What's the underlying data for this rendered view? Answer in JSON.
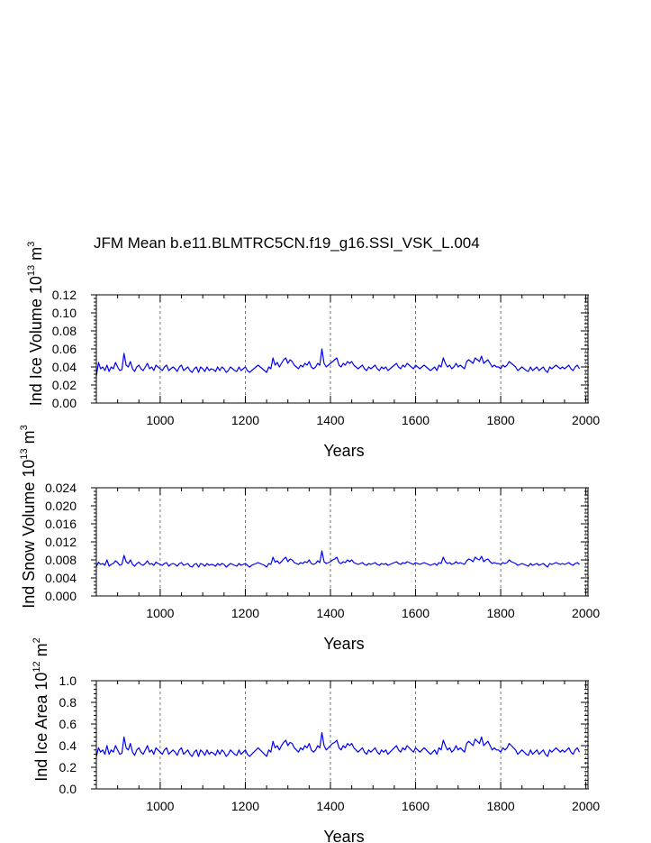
{
  "title": "JFM Mean b.e11.BLMTRC5CN.f19_g16.SSI_VSK_L.004",
  "colors": {
    "line": "#0000ff",
    "axis": "#000000",
    "grid": "#555555"
  },
  "chart_data": [
    {
      "type": "line",
      "xlabel": "Years",
      "ylabel_main": "Ind Ice Volume 10",
      "ylabel_exp": "13",
      "ylabel_unit": "m",
      "ylabel_unit_exp": "3",
      "xlim": [
        850,
        2005
      ],
      "ylim": [
        0,
        0.12
      ],
      "xticks": [
        "1000",
        "1200",
        "1400",
        "1600",
        "1800",
        "2000"
      ],
      "xtick_values": [
        1000,
        1200,
        1400,
        1600,
        1800,
        2000
      ],
      "yticks": [
        "0.00",
        "0.02",
        "0.04",
        "0.06",
        "0.08",
        "0.10",
        "0.12"
      ],
      "ytick_values": [
        0,
        0.02,
        0.04,
        0.06,
        0.08,
        0.1,
        0.12
      ],
      "grid": "dashed vertical at x ticks",
      "series": [
        {
          "x_start": 850,
          "x_step": 5,
          "values": [
            0.03,
            0.045,
            0.038,
            0.04,
            0.036,
            0.042,
            0.035,
            0.04,
            0.038,
            0.045,
            0.04,
            0.036,
            0.037,
            0.055,
            0.042,
            0.04,
            0.046,
            0.038,
            0.035,
            0.04,
            0.042,
            0.038,
            0.036,
            0.04,
            0.044,
            0.038,
            0.04,
            0.036,
            0.042,
            0.04,
            0.038,
            0.036,
            0.04,
            0.042,
            0.036,
            0.038,
            0.04,
            0.038,
            0.035,
            0.04,
            0.042,
            0.036,
            0.038,
            0.04,
            0.036,
            0.034,
            0.038,
            0.04,
            0.034,
            0.04,
            0.038,
            0.035,
            0.04,
            0.036,
            0.038,
            0.037,
            0.035,
            0.04,
            0.036,
            0.04,
            0.038,
            0.034,
            0.036,
            0.04,
            0.038,
            0.036,
            0.035,
            0.04,
            0.036,
            0.038,
            0.04,
            0.036,
            0.034,
            0.036,
            0.038,
            0.04,
            0.042,
            0.04,
            0.038,
            0.036,
            0.034,
            0.04,
            0.038,
            0.05,
            0.042,
            0.045,
            0.04,
            0.044,
            0.048,
            0.05,
            0.044,
            0.048,
            0.046,
            0.042,
            0.04,
            0.038,
            0.042,
            0.04,
            0.044,
            0.042,
            0.046,
            0.04,
            0.038,
            0.04,
            0.044,
            0.042,
            0.06,
            0.044,
            0.04,
            0.042,
            0.044,
            0.046,
            0.048,
            0.05,
            0.042,
            0.04,
            0.044,
            0.042,
            0.046,
            0.044,
            0.046,
            0.042,
            0.04,
            0.038,
            0.04,
            0.042,
            0.038,
            0.036,
            0.04,
            0.038,
            0.04,
            0.042,
            0.038,
            0.036,
            0.04,
            0.038,
            0.04,
            0.036,
            0.038,
            0.04,
            0.042,
            0.044,
            0.04,
            0.038,
            0.042,
            0.04,
            0.044,
            0.042,
            0.04,
            0.038,
            0.042,
            0.04,
            0.038,
            0.04,
            0.042,
            0.04,
            0.038,
            0.036,
            0.038,
            0.04,
            0.036,
            0.042,
            0.04,
            0.05,
            0.044,
            0.04,
            0.042,
            0.038,
            0.04,
            0.044,
            0.04,
            0.042,
            0.04,
            0.038,
            0.046,
            0.048,
            0.046,
            0.044,
            0.05,
            0.048,
            0.046,
            0.052,
            0.044,
            0.046,
            0.048,
            0.044,
            0.04,
            0.042,
            0.04,
            0.04,
            0.038,
            0.042,
            0.04,
            0.042,
            0.046,
            0.044,
            0.042,
            0.04,
            0.036,
            0.038,
            0.04,
            0.038,
            0.036,
            0.035,
            0.04,
            0.036,
            0.038,
            0.04,
            0.036,
            0.038,
            0.04,
            0.036,
            0.034,
            0.04,
            0.038,
            0.04,
            0.042,
            0.04,
            0.038,
            0.04,
            0.038,
            0.04,
            0.042,
            0.038,
            0.036,
            0.04,
            0.042,
            0.038
          ]
        }
      ]
    },
    {
      "type": "line",
      "xlabel": "Years",
      "ylabel_main": "Ind Snow Volume 10",
      "ylabel_exp": "13",
      "ylabel_unit": "m",
      "ylabel_unit_exp": "3",
      "xlim": [
        850,
        2005
      ],
      "ylim": [
        0,
        0.024
      ],
      "xticks": [
        "1000",
        "1200",
        "1400",
        "1600",
        "1800",
        "2000"
      ],
      "xtick_values": [
        1000,
        1200,
        1400,
        1600,
        1800,
        2000
      ],
      "yticks": [
        "0.000",
        "0.004",
        "0.008",
        "0.012",
        "0.016",
        "0.020",
        "0.024"
      ],
      "ytick_values": [
        0,
        0.004,
        0.008,
        0.012,
        0.016,
        0.02,
        0.024
      ],
      "grid": "dashed vertical at x ticks",
      "series": [
        {
          "x_start": 850,
          "x_step": 5,
          "values": [
            0.0065,
            0.0075,
            0.007,
            0.0072,
            0.0068,
            0.008,
            0.0066,
            0.007,
            0.0072,
            0.0078,
            0.0074,
            0.0068,
            0.007,
            0.009,
            0.0076,
            0.0072,
            0.008,
            0.007,
            0.0066,
            0.0072,
            0.0075,
            0.007,
            0.0068,
            0.0072,
            0.0078,
            0.007,
            0.0072,
            0.0068,
            0.0075,
            0.0072,
            0.007,
            0.0068,
            0.0072,
            0.0074,
            0.0066,
            0.007,
            0.0072,
            0.007,
            0.0066,
            0.0072,
            0.0074,
            0.0068,
            0.007,
            0.0072,
            0.0066,
            0.0064,
            0.007,
            0.0072,
            0.0064,
            0.0072,
            0.007,
            0.0066,
            0.0072,
            0.0068,
            0.007,
            0.0069,
            0.0066,
            0.0072,
            0.0068,
            0.0072,
            0.007,
            0.0064,
            0.0068,
            0.0072,
            0.007,
            0.0068,
            0.0066,
            0.0072,
            0.0068,
            0.007,
            0.0072,
            0.0068,
            0.0064,
            0.0068,
            0.007,
            0.0072,
            0.0074,
            0.0072,
            0.007,
            0.0068,
            0.0064,
            0.0072,
            0.007,
            0.0086,
            0.0075,
            0.0078,
            0.0072,
            0.0076,
            0.0082,
            0.0086,
            0.0076,
            0.0082,
            0.008,
            0.0074,
            0.0072,
            0.007,
            0.0074,
            0.0072,
            0.0076,
            0.0074,
            0.008,
            0.0072,
            0.007,
            0.0072,
            0.0078,
            0.0074,
            0.01,
            0.0076,
            0.0072,
            0.0074,
            0.0076,
            0.008,
            0.0082,
            0.0086,
            0.0074,
            0.0072,
            0.0076,
            0.0074,
            0.008,
            0.0076,
            0.008,
            0.0074,
            0.0072,
            0.007,
            0.0072,
            0.0074,
            0.007,
            0.0068,
            0.0072,
            0.007,
            0.0072,
            0.0074,
            0.007,
            0.0068,
            0.0072,
            0.007,
            0.0072,
            0.0068,
            0.007,
            0.0072,
            0.0074,
            0.0076,
            0.0072,
            0.007,
            0.0074,
            0.0072,
            0.0076,
            0.0074,
            0.0072,
            0.007,
            0.0074,
            0.0072,
            0.007,
            0.0072,
            0.0074,
            0.0072,
            0.007,
            0.0068,
            0.007,
            0.0072,
            0.0068,
            0.0074,
            0.0072,
            0.0086,
            0.0076,
            0.0072,
            0.0074,
            0.007,
            0.0072,
            0.0076,
            0.0072,
            0.0074,
            0.0072,
            0.007,
            0.0078,
            0.0082,
            0.008,
            0.0076,
            0.0086,
            0.0082,
            0.008,
            0.0088,
            0.0076,
            0.008,
            0.0082,
            0.0076,
            0.0072,
            0.0074,
            0.0072,
            0.0072,
            0.007,
            0.0074,
            0.0072,
            0.0074,
            0.008,
            0.0076,
            0.0074,
            0.0072,
            0.0068,
            0.007,
            0.0072,
            0.007,
            0.0068,
            0.0066,
            0.0072,
            0.0068,
            0.007,
            0.0072,
            0.0068,
            0.007,
            0.0072,
            0.0068,
            0.0064,
            0.0072,
            0.007,
            0.0072,
            0.0074,
            0.0072,
            0.007,
            0.0072,
            0.007,
            0.0072,
            0.0074,
            0.007,
            0.0068,
            0.0072,
            0.0074,
            0.007
          ]
        }
      ]
    },
    {
      "type": "line",
      "xlabel": "Years",
      "ylabel_main": "Ind Ice Area 10",
      "ylabel_exp": "12",
      "ylabel_unit": "m",
      "ylabel_unit_exp": "2",
      "xlim": [
        850,
        2005
      ],
      "ylim": [
        0,
        1.0
      ],
      "xticks": [
        "1000",
        "1200",
        "1400",
        "1600",
        "1800",
        "2000"
      ],
      "xtick_values": [
        1000,
        1200,
        1400,
        1600,
        1800,
        2000
      ],
      "yticks": [
        "0.0",
        "0.2",
        "0.4",
        "0.6",
        "0.8",
        "1.0"
      ],
      "ytick_values": [
        0,
        0.2,
        0.4,
        0.6,
        0.8,
        1.0
      ],
      "grid": "dashed vertical at x ticks",
      "series": [
        {
          "x_start": 850,
          "x_step": 5,
          "values": [
            0.3,
            0.38,
            0.34,
            0.36,
            0.32,
            0.4,
            0.32,
            0.36,
            0.34,
            0.4,
            0.36,
            0.32,
            0.33,
            0.48,
            0.38,
            0.36,
            0.42,
            0.34,
            0.31,
            0.36,
            0.38,
            0.34,
            0.32,
            0.36,
            0.4,
            0.34,
            0.36,
            0.32,
            0.38,
            0.36,
            0.34,
            0.32,
            0.36,
            0.38,
            0.32,
            0.34,
            0.36,
            0.34,
            0.31,
            0.36,
            0.38,
            0.32,
            0.34,
            0.36,
            0.32,
            0.3,
            0.34,
            0.36,
            0.3,
            0.36,
            0.34,
            0.31,
            0.36,
            0.32,
            0.34,
            0.33,
            0.31,
            0.36,
            0.32,
            0.36,
            0.34,
            0.3,
            0.32,
            0.36,
            0.34,
            0.32,
            0.31,
            0.36,
            0.32,
            0.34,
            0.36,
            0.32,
            0.3,
            0.32,
            0.34,
            0.36,
            0.38,
            0.36,
            0.34,
            0.32,
            0.3,
            0.36,
            0.34,
            0.44,
            0.38,
            0.4,
            0.36,
            0.4,
            0.43,
            0.45,
            0.4,
            0.43,
            0.42,
            0.38,
            0.36,
            0.34,
            0.38,
            0.36,
            0.4,
            0.38,
            0.42,
            0.36,
            0.34,
            0.36,
            0.4,
            0.38,
            0.52,
            0.4,
            0.36,
            0.38,
            0.4,
            0.42,
            0.43,
            0.45,
            0.38,
            0.36,
            0.4,
            0.38,
            0.42,
            0.4,
            0.42,
            0.38,
            0.36,
            0.34,
            0.36,
            0.38,
            0.34,
            0.32,
            0.36,
            0.34,
            0.36,
            0.38,
            0.34,
            0.32,
            0.36,
            0.34,
            0.36,
            0.32,
            0.34,
            0.36,
            0.38,
            0.4,
            0.36,
            0.34,
            0.38,
            0.36,
            0.4,
            0.38,
            0.36,
            0.34,
            0.38,
            0.36,
            0.34,
            0.36,
            0.38,
            0.36,
            0.34,
            0.32,
            0.34,
            0.36,
            0.32,
            0.38,
            0.36,
            0.45,
            0.4,
            0.36,
            0.38,
            0.34,
            0.36,
            0.4,
            0.36,
            0.38,
            0.36,
            0.34,
            0.42,
            0.44,
            0.42,
            0.4,
            0.46,
            0.44,
            0.42,
            0.48,
            0.4,
            0.42,
            0.44,
            0.4,
            0.36,
            0.38,
            0.36,
            0.36,
            0.34,
            0.38,
            0.36,
            0.38,
            0.42,
            0.4,
            0.38,
            0.36,
            0.32,
            0.34,
            0.36,
            0.34,
            0.32,
            0.31,
            0.36,
            0.32,
            0.34,
            0.36,
            0.32,
            0.34,
            0.36,
            0.32,
            0.3,
            0.36,
            0.34,
            0.36,
            0.38,
            0.36,
            0.34,
            0.36,
            0.34,
            0.36,
            0.38,
            0.34,
            0.32,
            0.36,
            0.38,
            0.34
          ]
        }
      ]
    }
  ]
}
